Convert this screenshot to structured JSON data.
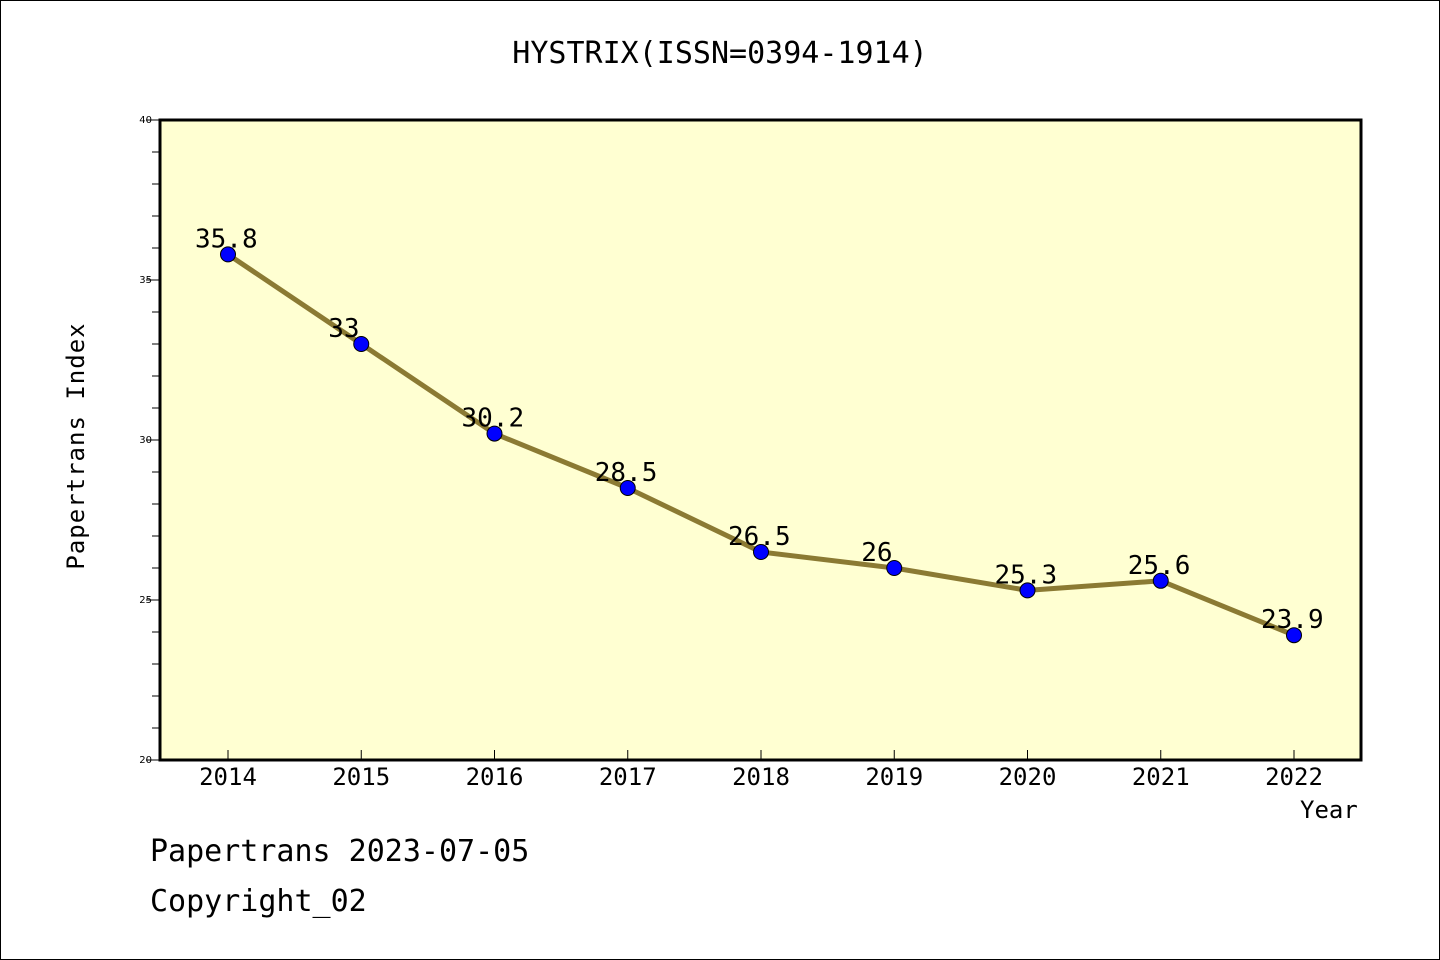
{
  "chart_data": {
    "type": "line",
    "title": "HYSTRIX(ISSN=0394-1914)",
    "xlabel": "Year",
    "ylabel": "Papertrans Index",
    "categories": [
      "2014",
      "2015",
      "2016",
      "2017",
      "2018",
      "2019",
      "2020",
      "2021",
      "2022"
    ],
    "values": [
      35.8,
      33,
      30.2,
      28.5,
      26.5,
      26,
      25.3,
      25.6,
      23.9
    ],
    "data_labels": [
      "35.8",
      "33",
      "30.2",
      "28.5",
      "26.5",
      "26",
      "25.3",
      "25.6",
      "23.9"
    ],
    "ylim": [
      20,
      40
    ],
    "yticks": [
      "20",
      "25",
      "30",
      "35",
      "40"
    ],
    "grid": false,
    "legend": "none",
    "colors": {
      "plot_background": "#ffffd2",
      "line": "#8b7a33",
      "marker": "#0000ff",
      "axis": "#000000"
    }
  },
  "footer": {
    "date_line": "Papertrans 2023-07-05",
    "copyright_line": "Copyright_02"
  }
}
